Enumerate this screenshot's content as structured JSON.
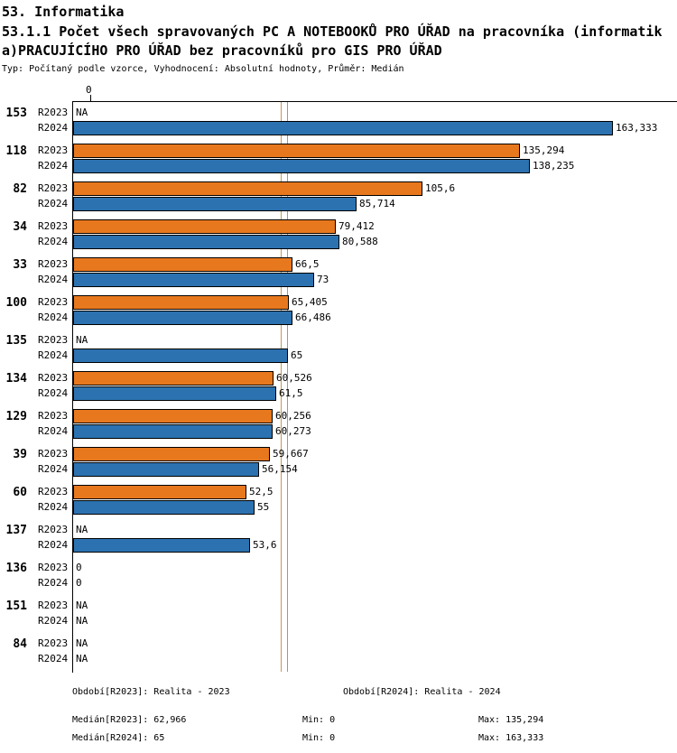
{
  "header": {
    "line1": "53. Informatika",
    "line2a": "53.1.1 Počet všech spravovaných PC A NOTEBOOKŮ PRO ÚŘAD na pracovníka (informatik",
    "line2b": "a)PRACUJÍCÍHO PRO ÚŘAD bez pracovníků pro GIS PRO ÚŘAD",
    "line3": "Typ: Počítaný podle vzorce, Vyhodnocení: Absolutní hodnoty, Průměr: Medián"
  },
  "chart_data": {
    "type": "bar",
    "orientation": "horizontal",
    "title": "53.1.1 Počet všech spravovaných PC A NOTEBOOKŮ PRO ÚŘAD na pracovníka (informatika)PRACUJÍCÍHO PRO ÚŘAD bez pracovníků pro GIS PRO ÚŘAD",
    "axis": {
      "zero_label": "0",
      "max": 163.333
    },
    "grid": false,
    "legend": "none",
    "series": [
      {
        "name": "R2023",
        "color": "#E8781E"
      },
      {
        "name": "R2024",
        "color": "#2C72B0"
      }
    ],
    "median_lines": [
      {
        "name": "Medián[R2023]",
        "value": 62.966,
        "color": "#C89A4A"
      },
      {
        "name": "Medián[R2024]",
        "value": 65,
        "color": "#7D9EC6"
      }
    ],
    "groups": [
      {
        "id": "153",
        "r2023": {
          "display": "NA",
          "value": null
        },
        "r2024": {
          "display": "163,333",
          "value": 163.333
        }
      },
      {
        "id": "118",
        "r2023": {
          "display": "135,294",
          "value": 135.294
        },
        "r2024": {
          "display": "138,235",
          "value": 138.235
        }
      },
      {
        "id": "82",
        "r2023": {
          "display": "105,6",
          "value": 105.6
        },
        "r2024": {
          "display": "85,714",
          "value": 85.714
        }
      },
      {
        "id": "34",
        "r2023": {
          "display": "79,412",
          "value": 79.412
        },
        "r2024": {
          "display": "80,588",
          "value": 80.588
        }
      },
      {
        "id": "33",
        "r2023": {
          "display": "66,5",
          "value": 66.5
        },
        "r2024": {
          "display": "73",
          "value": 73
        }
      },
      {
        "id": "100",
        "r2023": {
          "display": "65,405",
          "value": 65.405
        },
        "r2024": {
          "display": "66,486",
          "value": 66.486
        }
      },
      {
        "id": "135",
        "r2023": {
          "display": "NA",
          "value": null
        },
        "r2024": {
          "display": "65",
          "value": 65
        }
      },
      {
        "id": "134",
        "r2023": {
          "display": "60,526",
          "value": 60.526
        },
        "r2024": {
          "display": "61,5",
          "value": 61.5
        }
      },
      {
        "id": "129",
        "r2023": {
          "display": "60,256",
          "value": 60.256
        },
        "r2024": {
          "display": "60,273",
          "value": 60.273
        }
      },
      {
        "id": "39",
        "r2023": {
          "display": "59,667",
          "value": 59.667
        },
        "r2024": {
          "display": "56,154",
          "value": 56.154
        }
      },
      {
        "id": "60",
        "r2023": {
          "display": "52,5",
          "value": 52.5
        },
        "r2024": {
          "display": "55",
          "value": 55
        }
      },
      {
        "id": "137",
        "r2023": {
          "display": "NA",
          "value": null
        },
        "r2024": {
          "display": "53,6",
          "value": 53.6
        }
      },
      {
        "id": "136",
        "r2023": {
          "display": "0",
          "value": 0
        },
        "r2024": {
          "display": "0",
          "value": 0
        }
      },
      {
        "id": "151",
        "r2023": {
          "display": "NA",
          "value": null
        },
        "r2024": {
          "display": "NA",
          "value": null
        }
      },
      {
        "id": "84",
        "r2023": {
          "display": "NA",
          "value": null
        },
        "r2024": {
          "display": "NA",
          "value": null
        }
      }
    ]
  },
  "footer": {
    "period_r2023": "Období[R2023]: Realita - 2023",
    "period_r2024": "Období[R2024]: Realita - 2024",
    "median_r2023": "Medián[R2023]: 62,966",
    "min_r2023": "Min: 0",
    "max_r2023": "Max: 135,294",
    "median_r2024": "Medián[R2024]: 65",
    "min_r2024": "Min: 0",
    "max_r2024": "Max: 163,333"
  }
}
